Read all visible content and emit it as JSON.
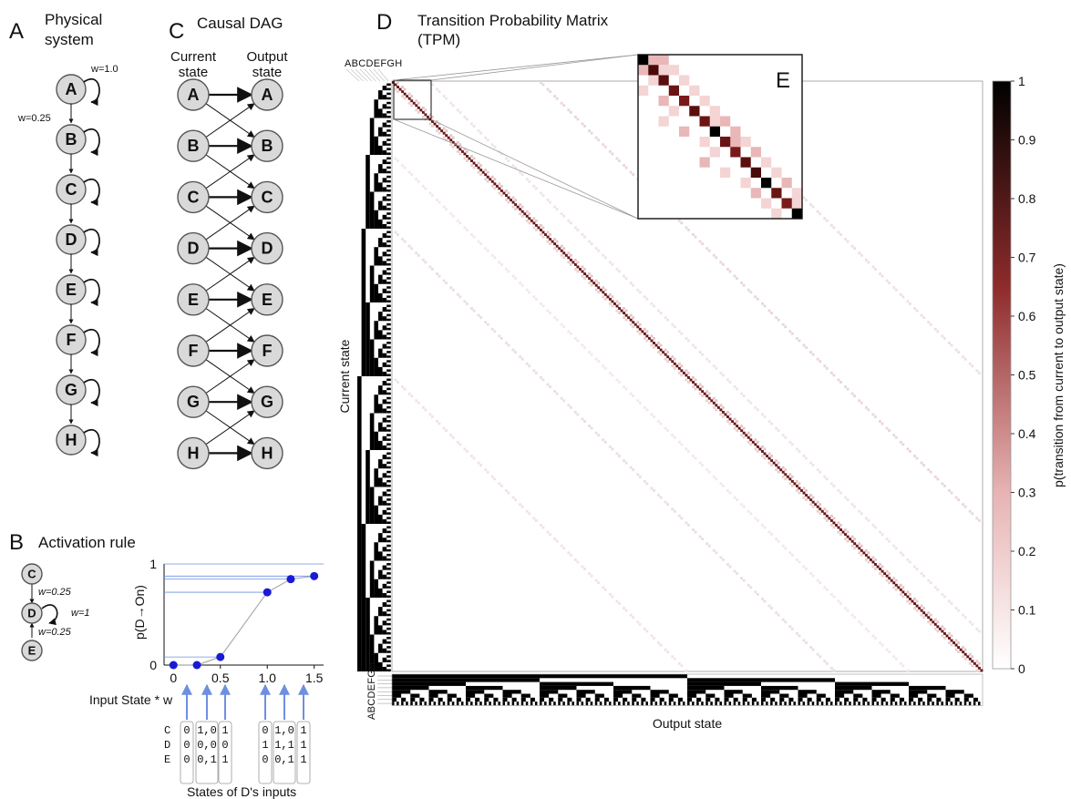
{
  "panels": {
    "a": {
      "letter": "A",
      "title_line1": "Physical",
      "title_line2": "system",
      "weight_self": "w=1.0",
      "weight_neighbor": "w=0.25",
      "nodes": [
        "A",
        "B",
        "C",
        "D",
        "E",
        "F",
        "G",
        "H"
      ]
    },
    "b": {
      "letter": "B",
      "title": "Activation rule",
      "nodes": [
        "C",
        "D",
        "E"
      ],
      "w_top": "w=0.25",
      "w_self": "w=1",
      "w_bottom": "w=0.25",
      "y_label": "p(D→On)",
      "x_axis_label": "Input State * w",
      "bottom_label": "States of D's inputs",
      "row_labels": [
        "C",
        "D",
        "E"
      ],
      "columns": [
        [
          "0",
          "0",
          "0"
        ],
        [
          "1,0",
          "0,0",
          "0,1"
        ],
        [
          "1",
          "0",
          "1"
        ],
        [
          "0",
          "1",
          "0"
        ],
        [
          "1,0",
          "1,1",
          "0,1"
        ],
        [
          "1",
          "1",
          "1"
        ]
      ]
    },
    "c": {
      "letter": "C",
      "title": "Causal DAG",
      "left_header_1": "Current",
      "left_header_2": "state",
      "right_header_1": "Output",
      "right_header_2": "state",
      "nodes": [
        "A",
        "B",
        "C",
        "D",
        "E",
        "F",
        "G",
        "H"
      ]
    },
    "d": {
      "letter": "D",
      "title_line1": "Transition Probability Matrix",
      "title_line2": "(TPM)",
      "ylabel": "Current state",
      "xlabel": "Output state",
      "bit_labels": "ABCDEFGH"
    },
    "e": {
      "letter": "E"
    },
    "colorbar": {
      "label": "p(transition from current to output state)",
      "ticks": [
        "1",
        "0.9",
        "0.8",
        "0.7",
        "0.6",
        "0.5",
        "0.4",
        "0.3",
        "0.2",
        "0.1",
        "0"
      ]
    }
  },
  "chart_data": {
    "type": "line",
    "title": "",
    "xlabel": "Input State * w",
    "ylabel": "p(D→On)",
    "x_ticks": [
      "0",
      "0.5",
      "1.0",
      "1.5"
    ],
    "y_ticks": [
      "0",
      "1"
    ],
    "xlim": [
      -0.1,
      1.6
    ],
    "ylim": [
      0,
      1
    ],
    "series": [
      {
        "x": [
          0,
          0.25,
          0.5,
          1.0,
          1.25,
          1.5
        ],
        "y": [
          0.0,
          0.0,
          0.08,
          0.72,
          0.85,
          0.88
        ]
      }
    ]
  }
}
